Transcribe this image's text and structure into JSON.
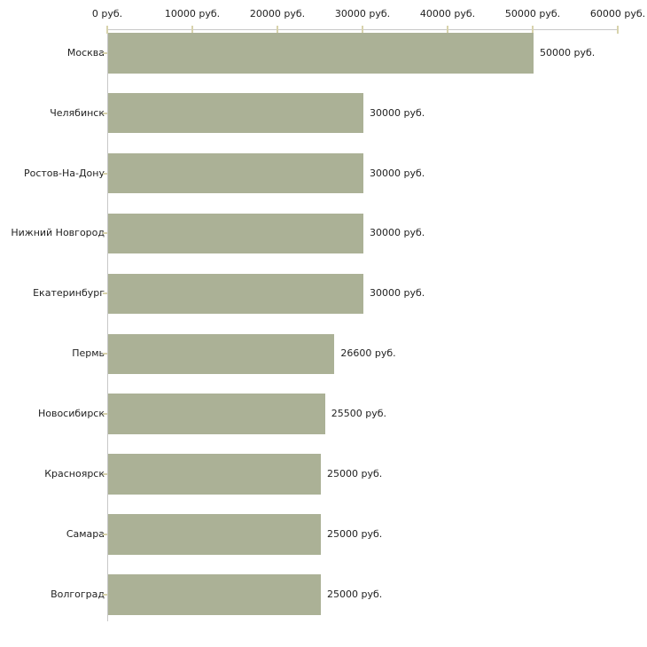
{
  "chart_data": {
    "type": "bar",
    "orientation": "horizontal",
    "title": "",
    "xlabel": "",
    "ylabel": "",
    "xlim": [
      0,
      60000
    ],
    "x_tick_step": 10000,
    "x_tick_labels": [
      "0 руб.",
      "10000 руб.",
      "20000 руб.",
      "30000 руб.",
      "40000 руб.",
      "50000 руб.",
      "60000 руб."
    ],
    "categories": [
      "Москва",
      "Челябинск",
      "Ростов-На-Дону",
      "Нижний Новгород",
      "Екатеринбург",
      "Пермь",
      "Новосибирск",
      "Красноярск",
      "Самара",
      "Волгоград"
    ],
    "values": [
      50000,
      30000,
      30000,
      30000,
      30000,
      26600,
      25500,
      25000,
      25000,
      25000
    ],
    "value_labels": [
      "50000 руб.",
      "30000 руб.",
      "30000 руб.",
      "30000 руб.",
      "30000 руб.",
      "26600 руб.",
      "25500 руб.",
      "25000 руб.",
      "25000 руб.",
      "25000 руб."
    ],
    "grid": false,
    "legend": false,
    "colors": {
      "bar": "#abb196",
      "axis_line": "#c8c8c8",
      "tick": "#d8d3ac",
      "text": "#222222",
      "background": "#ffffff"
    }
  }
}
